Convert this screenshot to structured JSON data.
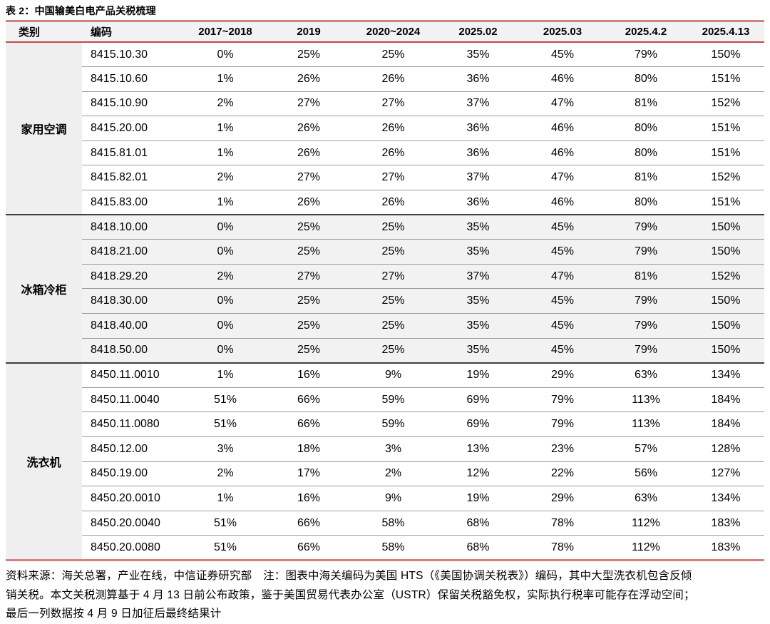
{
  "title": "表 2：中国输美白电产品关税梳理",
  "table": {
    "columns": [
      "类别",
      "编码",
      "2017~2018",
      "2019",
      "2020~2024",
      "2025.02",
      "2025.03",
      "2025.4.2",
      "2025.4.13"
    ],
    "groups": [
      {
        "category": "家用空调",
        "shaded": false,
        "rows": [
          {
            "code": "8415.10.30",
            "values": [
              "0%",
              "25%",
              "25%",
              "35%",
              "45%",
              "79%",
              "150%"
            ]
          },
          {
            "code": "8415.10.60",
            "values": [
              "1%",
              "26%",
              "26%",
              "36%",
              "46%",
              "80%",
              "151%"
            ]
          },
          {
            "code": "8415.10.90",
            "values": [
              "2%",
              "27%",
              "27%",
              "37%",
              "47%",
              "81%",
              "152%"
            ]
          },
          {
            "code": "8415.20.00",
            "values": [
              "1%",
              "26%",
              "26%",
              "36%",
              "46%",
              "80%",
              "151%"
            ]
          },
          {
            "code": "8415.81.01",
            "values": [
              "1%",
              "26%",
              "26%",
              "36%",
              "46%",
              "80%",
              "151%"
            ]
          },
          {
            "code": "8415.82.01",
            "values": [
              "2%",
              "27%",
              "27%",
              "37%",
              "47%",
              "81%",
              "152%"
            ]
          },
          {
            "code": "8415.83.00",
            "values": [
              "1%",
              "26%",
              "26%",
              "36%",
              "46%",
              "80%",
              "151%"
            ]
          }
        ]
      },
      {
        "category": "冰箱冷柜",
        "shaded": true,
        "rows": [
          {
            "code": "8418.10.00",
            "values": [
              "0%",
              "25%",
              "25%",
              "35%",
              "45%",
              "79%",
              "150%"
            ]
          },
          {
            "code": "8418.21.00",
            "values": [
              "0%",
              "25%",
              "25%",
              "35%",
              "45%",
              "79%",
              "150%"
            ]
          },
          {
            "code": "8418.29.20",
            "values": [
              "2%",
              "27%",
              "27%",
              "37%",
              "47%",
              "81%",
              "152%"
            ]
          },
          {
            "code": "8418.30.00",
            "values": [
              "0%",
              "25%",
              "25%",
              "35%",
              "45%",
              "79%",
              "150%"
            ]
          },
          {
            "code": "8418.40.00",
            "values": [
              "0%",
              "25%",
              "25%",
              "35%",
              "45%",
              "79%",
              "150%"
            ]
          },
          {
            "code": "8418.50.00",
            "values": [
              "0%",
              "25%",
              "25%",
              "35%",
              "45%",
              "79%",
              "150%"
            ]
          }
        ]
      },
      {
        "category": "洗衣机",
        "shaded": false,
        "rows": [
          {
            "code": "8450.11.0010",
            "values": [
              "1%",
              "16%",
              "9%",
              "19%",
              "29%",
              "63%",
              "134%"
            ]
          },
          {
            "code": "8450.11.0040",
            "values": [
              "51%",
              "66%",
              "59%",
              "69%",
              "79%",
              "113%",
              "184%"
            ]
          },
          {
            "code": "8450.11.0080",
            "values": [
              "51%",
              "66%",
              "59%",
              "69%",
              "79%",
              "113%",
              "184%"
            ]
          },
          {
            "code": "8450.12.00",
            "values": [
              "3%",
              "18%",
              "3%",
              "13%",
              "23%",
              "57%",
              "128%"
            ]
          },
          {
            "code": "8450.19.00",
            "values": [
              "2%",
              "17%",
              "2%",
              "12%",
              "22%",
              "56%",
              "127%"
            ]
          },
          {
            "code": "8450.20.0010",
            "values": [
              "1%",
              "16%",
              "9%",
              "19%",
              "29%",
              "63%",
              "134%"
            ]
          },
          {
            "code": "8450.20.0040",
            "values": [
              "51%",
              "66%",
              "58%",
              "68%",
              "78%",
              "112%",
              "183%"
            ]
          },
          {
            "code": "8450.20.0080",
            "values": [
              "51%",
              "66%",
              "58%",
              "68%",
              "78%",
              "112%",
              "183%"
            ]
          }
        ]
      }
    ]
  },
  "footnote": {
    "lines": [
      "资料来源：海关总署，产业在线，中信证券研究部　注：图表中海关编码为美国 HTS（《美国协调关税表》）编码，其中大型洗衣机包含反倾",
      "销关税。本文关税测算基于 4 月 13 日前公布政策，鉴于美国贸易代表办公室（USTR）保留关税豁免权，实际执行税率可能存在浮动空间；",
      "最后一列数据按 4 月 9 日加征后最终结果计"
    ]
  },
  "colors": {
    "accent_red_soft": "#cf8383",
    "accent_red": "#c24a4a",
    "header_bg": "#f2f2f2",
    "shaded_row_bg": "#f2f2f2",
    "category_col_bg": "#efefef",
    "group_divider": "#3f3f3f",
    "row_divider": "#9c9c9c"
  }
}
